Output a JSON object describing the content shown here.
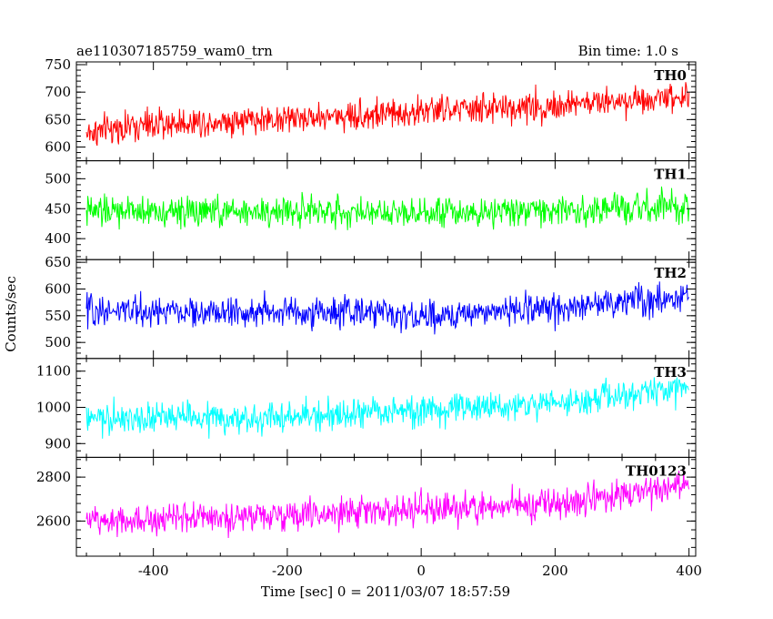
{
  "chart_data": {
    "type": "line",
    "title": "ae110307185759_wam0_trn",
    "subtitle": "Bin time: 1.0 s",
    "xlabel": "Time [sec] 0 = 2011/03/07 18:57:59",
    "ylabel": "Counts/sec",
    "xlim": [
      -515,
      410
    ],
    "xticks": [
      -400,
      -200,
      0,
      200,
      400
    ],
    "grid": false,
    "panels": [
      {
        "name": "TH0",
        "color": "#ff0000",
        "ylim": [
          575,
          755
        ],
        "yticks": [
          600,
          650,
          700,
          750
        ],
        "x": [
          -500,
          -450,
          -400,
          -350,
          -300,
          -250,
          -200,
          -150,
          -100,
          -50,
          0,
          50,
          100,
          150,
          200,
          250,
          300,
          350,
          400
        ],
        "values": [
          625,
          635,
          640,
          645,
          648,
          650,
          652,
          655,
          658,
          660,
          665,
          668,
          670,
          672,
          675,
          680,
          685,
          690,
          695
        ]
      },
      {
        "name": "TH1",
        "color": "#00ff00",
        "ylim": [
          365,
          530
        ],
        "yticks": [
          400,
          450,
          500
        ],
        "x": [
          -500,
          -450,
          -400,
          -350,
          -300,
          -250,
          -200,
          -150,
          -100,
          -50,
          0,
          50,
          100,
          150,
          200,
          250,
          300,
          350,
          400
        ],
        "values": [
          445,
          445,
          446,
          445,
          444,
          445,
          446,
          445,
          445,
          446,
          446,
          445,
          446,
          447,
          447,
          448,
          449,
          450,
          450
        ]
      },
      {
        "name": "TH2",
        "color": "#0000ff",
        "ylim": [
          470,
          655
        ],
        "yticks": [
          500,
          550,
          600,
          650
        ],
        "x": [
          -500,
          -450,
          -400,
          -350,
          -300,
          -250,
          -200,
          -150,
          -100,
          -50,
          0,
          50,
          100,
          150,
          200,
          250,
          300,
          350,
          400
        ],
        "values": [
          560,
          560,
          558,
          556,
          555,
          557,
          558,
          556,
          555,
          557,
          545,
          552,
          558,
          562,
          566,
          570,
          576,
          582,
          588
        ]
      },
      {
        "name": "TH3",
        "color": "#00ffff",
        "ylim": [
          862,
          1135
        ],
        "yticks": [
          900,
          1000,
          1100
        ],
        "x": [
          -500,
          -450,
          -400,
          -350,
          -300,
          -250,
          -200,
          -150,
          -100,
          -50,
          0,
          50,
          100,
          150,
          200,
          250,
          300,
          350,
          400
        ],
        "values": [
          965,
          968,
          970,
          972,
          970,
          965,
          972,
          978,
          982,
          986,
          990,
          995,
          1000,
          1005,
          1012,
          1020,
          1030,
          1045,
          1060
        ]
      },
      {
        "name": "TH0123",
        "color": "#ff00ff",
        "ylim": [
          2440,
          2890
        ],
        "yticks": [
          2600,
          2800
        ],
        "x": [
          -500,
          -450,
          -400,
          -350,
          -300,
          -250,
          -200,
          -150,
          -100,
          -50,
          0,
          50,
          100,
          150,
          200,
          250,
          300,
          350,
          400
        ],
        "values": [
          2600,
          2610,
          2615,
          2620,
          2618,
          2615,
          2625,
          2632,
          2640,
          2645,
          2650,
          2658,
          2665,
          2672,
          2680,
          2695,
          2715,
          2745,
          2775
        ]
      }
    ]
  }
}
